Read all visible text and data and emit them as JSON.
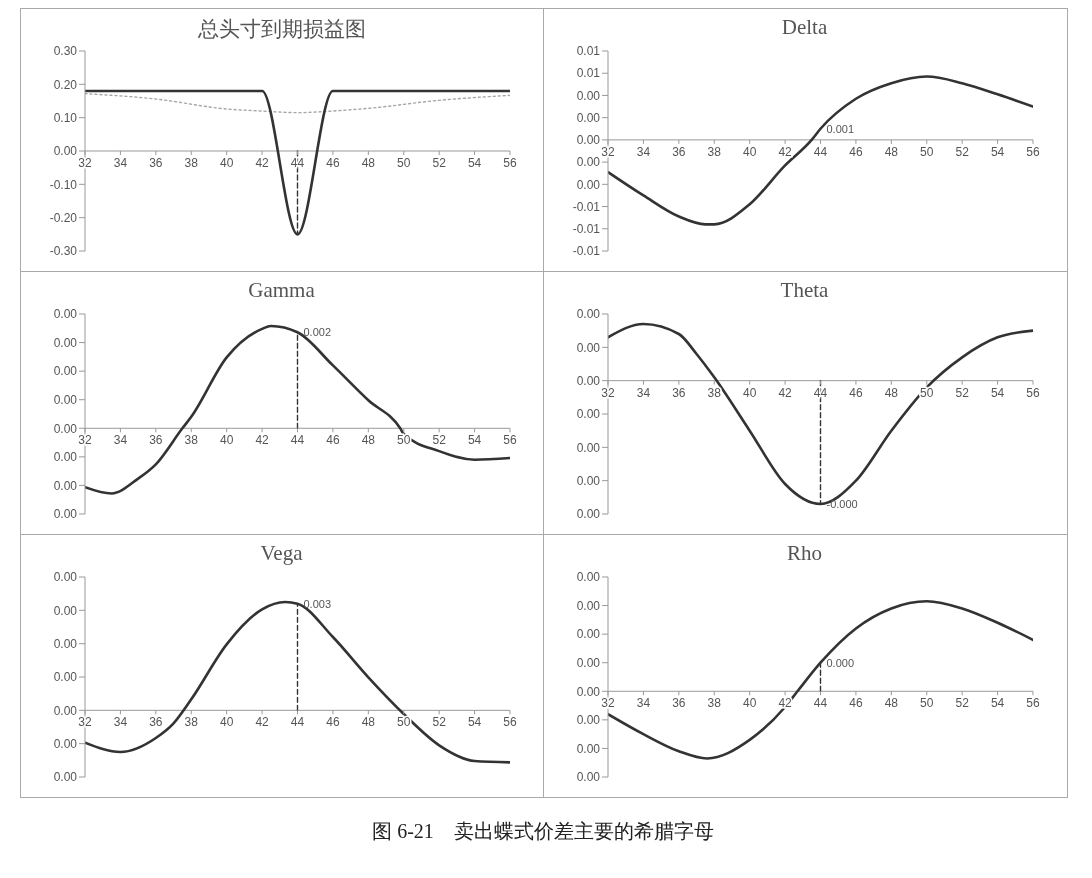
{
  "chart_data": [
    {
      "type": "line",
      "title": "总头寸到期损益图",
      "marker": "none",
      "xlim": [
        32,
        56
      ],
      "xticks": [
        32,
        34,
        36,
        38,
        40,
        42,
        44,
        46,
        48,
        50,
        52,
        54,
        56
      ],
      "ylim": [
        -0.3,
        0.3
      ],
      "yticks": [
        {
          "value": 0.3,
          "label": "0.30"
        },
        {
          "value": 0.2,
          "label": "0.20"
        },
        {
          "value": 0.1,
          "label": "0.10"
        },
        {
          "value": 0,
          "label": "0.00"
        },
        {
          "value": -0.1,
          "label": "-0.10"
        },
        {
          "value": -0.2,
          "label": "-0.20"
        },
        {
          "value": -0.3,
          "label": "-0.30"
        }
      ],
      "series": [
        {
          "color": "#a6a6a6",
          "line_style": "dotted",
          "x": [
            32,
            36,
            40,
            42,
            44,
            46,
            48,
            52,
            56
          ],
          "values": [
            0.172,
            0.156,
            0.126,
            0.12,
            0.115,
            0.12,
            0.128,
            0.152,
            0.167
          ]
        },
        {
          "color": "#333333",
          "line_style": "solid",
          "x": [
            32,
            42,
            44,
            46,
            56
          ],
          "values": [
            0.18,
            0.18,
            -0.25,
            0.18,
            0.18
          ]
        },
        {
          "color": "#333333",
          "line_style": "dashed",
          "x": [
            44,
            44
          ],
          "values": [
            0,
            -0.25
          ]
        }
      ]
    },
    {
      "type": "line",
      "title": "Delta",
      "marker": "none",
      "xlim": [
        32,
        56
      ],
      "xticks": [
        32,
        34,
        36,
        38,
        40,
        42,
        44,
        46,
        48,
        50,
        52,
        54,
        56
      ],
      "ylim": [
        -0.01,
        0.008
      ],
      "yticks": [
        {
          "value": 0.008,
          "label": "0.01"
        },
        {
          "value": 0.006,
          "label": "0.01"
        },
        {
          "value": 0.004,
          "label": "0.00"
        },
        {
          "value": 0.002,
          "label": "0.00"
        },
        {
          "value": 0,
          "label": "0.00"
        },
        {
          "value": -0.002,
          "label": "0.00"
        },
        {
          "value": -0.004,
          "label": "0.00"
        },
        {
          "value": -0.006,
          "label": "-0.01"
        },
        {
          "value": -0.008,
          "label": "-0.01"
        },
        {
          "value": -0.01,
          "label": "-0.01"
        }
      ],
      "series": [
        {
          "color": "#333333",
          "line_style": "solid",
          "x": [
            32,
            34,
            36,
            37.5,
            38,
            40,
            42,
            43.5,
            44,
            46,
            48,
            50,
            52,
            54,
            56
          ],
          "values": [
            -0.0029,
            -0.005,
            -0.0069,
            -0.0076,
            -0.0076,
            -0.0058,
            -0.0023,
            0,
            0.001,
            0.0037,
            0.0051,
            0.0057,
            0.0051,
            0.0041,
            0.003
          ],
          "value_labels": [
            null,
            null,
            null,
            null,
            null,
            null,
            null,
            null,
            "0.001",
            null,
            null,
            null,
            null,
            null,
            null
          ]
        }
      ]
    },
    {
      "type": "line",
      "title": "Gamma",
      "marker": "none",
      "xlim": [
        32,
        56
      ],
      "xticks": [
        32,
        34,
        36,
        38,
        40,
        42,
        44,
        46,
        48,
        50,
        52,
        54,
        56
      ],
      "ylim": [
        -0.0015,
        0.002
      ],
      "yticks": [
        {
          "value": 0.002,
          "label": "0.00"
        },
        {
          "value": 0.0015,
          "label": "0.00"
        },
        {
          "value": 0.001,
          "label": "0.00"
        },
        {
          "value": 0.0005,
          "label": "0.00"
        },
        {
          "value": 0,
          "label": "0.00"
        },
        {
          "value": -0.0005,
          "label": "0.00"
        },
        {
          "value": -0.001,
          "label": "0.00"
        },
        {
          "value": -0.0015,
          "label": "0.00"
        }
      ],
      "series": [
        {
          "color": "#333333",
          "line_style": "solid",
          "x": [
            32,
            33.5,
            35,
            36,
            37.5,
            38,
            40,
            42,
            42.5,
            44,
            46,
            48,
            49.8,
            50,
            52,
            54,
            56
          ],
          "values": [
            -0.00103,
            -0.00114,
            -0.00088,
            -0.00063,
            0,
            0.0002,
            0.00124,
            0.00174,
            0.00179,
            0.00168,
            0.0011,
            0.00049,
            0,
            -0.0001,
            -0.0004,
            -0.00055,
            -0.00052
          ],
          "value_labels": [
            null,
            null,
            null,
            null,
            null,
            null,
            null,
            null,
            null,
            "0.002",
            null,
            null,
            null,
            null,
            null,
            null,
            null
          ]
        },
        {
          "color": "#333333",
          "line_style": "dashed",
          "x": [
            44,
            44
          ],
          "values": [
            0,
            0.00168
          ]
        }
      ]
    },
    {
      "type": "line",
      "title": "Theta",
      "marker": "none",
      "xlim": [
        32,
        56
      ],
      "xticks": [
        32,
        34,
        36,
        38,
        40,
        42,
        44,
        46,
        48,
        50,
        52,
        54,
        56
      ],
      "ylim": [
        -0.0004,
        0.0002
      ],
      "yticks": [
        {
          "value": 0.0002,
          "label": "0.00"
        },
        {
          "value": 0.0001,
          "label": "0.00"
        },
        {
          "value": 0,
          "label": "0.00"
        },
        {
          "value": -0.0001,
          "label": "0.00"
        },
        {
          "value": -0.0002,
          "label": "0.00"
        },
        {
          "value": -0.0003,
          "label": "0.00"
        },
        {
          "value": -0.0004,
          "label": "0.00"
        }
      ],
      "series": [
        {
          "color": "#333333",
          "line_style": "solid",
          "x": [
            32,
            34,
            36,
            37,
            38,
            40,
            42,
            44,
            46,
            48,
            50,
            52,
            54,
            56
          ],
          "values": [
            0.00013,
            0.00017,
            0.00014,
            8e-05,
            1e-05,
            -0.00015,
            -0.00031,
            -0.00037,
            -0.0003,
            -0.00015,
            -2e-05,
            7e-05,
            0.00013,
            0.00015
          ],
          "value_labels": [
            null,
            null,
            null,
            null,
            null,
            null,
            null,
            "-0.000",
            null,
            null,
            null,
            null,
            null,
            null
          ]
        },
        {
          "color": "#333333",
          "line_style": "dashed",
          "x": [
            44,
            44
          ],
          "values": [
            0,
            -0.00037
          ]
        }
      ]
    },
    {
      "type": "line",
      "title": "Vega",
      "marker": "none",
      "xlim": [
        32,
        56
      ],
      "xticks": [
        32,
        34,
        36,
        38,
        40,
        42,
        44,
        46,
        48,
        50,
        52,
        54,
        56
      ],
      "ylim": [
        -0.002,
        0.004
      ],
      "yticks": [
        {
          "value": 0.004,
          "label": "0.00"
        },
        {
          "value": 0.003,
          "label": "0.00"
        },
        {
          "value": 0.002,
          "label": "0.00"
        },
        {
          "value": 0.001,
          "label": "0.00"
        },
        {
          "value": 0,
          "label": "0.00"
        },
        {
          "value": -0.001,
          "label": "0.00"
        },
        {
          "value": -0.002,
          "label": "0.00"
        }
      ],
      "series": [
        {
          "color": "#333333",
          "line_style": "solid",
          "x": [
            32,
            34,
            36,
            37,
            38,
            40,
            42,
            43.3,
            44,
            46,
            48,
            50,
            52,
            54,
            56
          ],
          "values": [
            -0.00097,
            -0.00125,
            -0.00083,
            -0.00039,
            0.00033,
            0.00198,
            0.00303,
            0.00325,
            0.0032,
            0.0022,
            0.00099,
            -0.00011,
            -0.00105,
            -0.00152,
            -0.00156
          ],
          "value_labels": [
            null,
            null,
            null,
            null,
            null,
            null,
            null,
            null,
            "0.003",
            null,
            null,
            null,
            null,
            null,
            null
          ]
        },
        {
          "color": "#333333",
          "line_style": "dashed",
          "x": [
            44,
            44
          ],
          "values": [
            0,
            0.0032
          ]
        }
      ]
    },
    {
      "type": "line",
      "title": "Rho",
      "marker": "none",
      "xlim": [
        32,
        56
      ],
      "xticks": [
        32,
        34,
        36,
        38,
        40,
        42,
        44,
        46,
        48,
        50,
        52,
        54,
        56
      ],
      "ylim": [
        -0.0006,
        0.0008
      ],
      "yticks": [
        {
          "value": 0.0008,
          "label": "0.00"
        },
        {
          "value": 0.0006,
          "label": "0.00"
        },
        {
          "value": 0.0004,
          "label": "0.00"
        },
        {
          "value": 0.0002,
          "label": "0.00"
        },
        {
          "value": 0,
          "label": "0.00"
        },
        {
          "value": -0.0002,
          "label": "0.00"
        },
        {
          "value": -0.0004,
          "label": "0.00"
        },
        {
          "value": -0.0006,
          "label": "0.00"
        }
      ],
      "annotations": [
        "图 6-21　卖出蝶式价差主要的希腊字母"
      ],
      "series": [
        {
          "color": "#333333",
          "line_style": "solid",
          "x": [
            32,
            34,
            36,
            37.6,
            40,
            42,
            42.7,
            44,
            46,
            48,
            50,
            52,
            54,
            56
          ],
          "values": [
            -0.00016,
            -0.0003,
            -0.00042,
            -0.00047,
            -0.00034,
            -0.00011,
            0,
            0.0002,
            0.00044,
            0.00058,
            0.00063,
            0.00058,
            0.00048,
            0.00036
          ],
          "value_labels": [
            null,
            null,
            null,
            null,
            null,
            null,
            null,
            "0.000",
            null,
            null,
            null,
            null,
            null,
            null
          ]
        },
        {
          "color": "#333333",
          "line_style": "dashed",
          "x": [
            44,
            44
          ],
          "values": [
            0,
            0.0002
          ]
        }
      ]
    }
  ]
}
